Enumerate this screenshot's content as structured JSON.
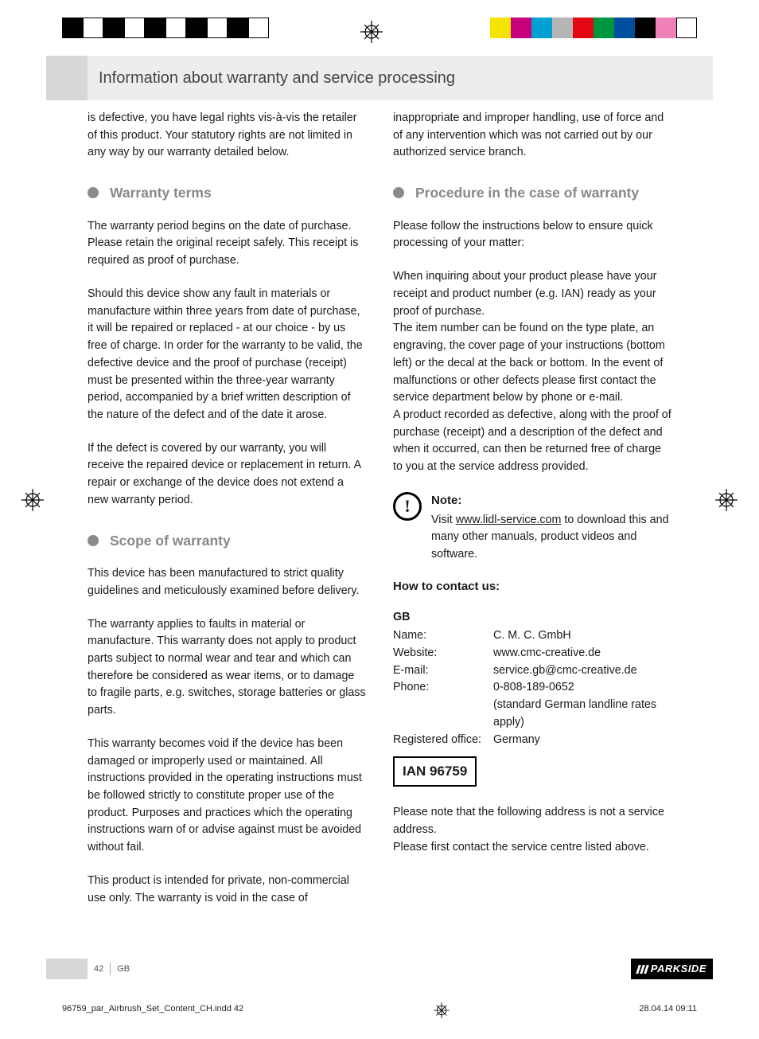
{
  "colorBarsLeft": [
    "#000000",
    "#ffffff",
    "#000000",
    "#ffffff",
    "#000000",
    "#ffffff",
    "#000000",
    "#ffffff",
    "#000000",
    "#ffffff"
  ],
  "colorBarsRight": [
    "#f4e400",
    "#c8007b",
    "#00a0d2",
    "#b5b5b5",
    "#e30613",
    "#009640",
    "#004f9e",
    "#000000",
    "#f080b8",
    "#ffffff"
  ],
  "header": {
    "title": "Information about warranty and service processing"
  },
  "leftCol": {
    "intro": "is defective, you have legal rights vis-à-vis the retailer of this product. Your statutory rights are not limited in any way by our warranty detailed below.",
    "h1": "Warranty terms",
    "p1": "The warranty period begins on the date of purchase. Please retain the original receipt safely. This receipt is required as proof of purchase.",
    "p2": "Should this device show any fault in materials or manufacture within three years from date of purchase, it will be repaired or replaced - at our choice - by us free of charge. In order for the warranty to be valid, the defective device and the proof of purchase (receipt) must be presented within the three-year warranty period, accompanied by a brief written description of the nature of the defect and of the date it arose.",
    "p3": "If the defect is covered by our warranty, you will receive the repaired device or replacement in return. A repair or exchange of the device does not extend a new warranty period.",
    "h2": "Scope of warranty",
    "p4": "This device has been manufactured to strict quality guidelines and meticulously examined before delivery.",
    "p5": "The warranty applies to faults in material or manufacture. This warranty does not apply to product parts subject to normal wear and tear and which can therefore be considered as wear items, or to damage to fragile parts, e.g. switches, storage batteries or glass parts.",
    "p6": "This warranty becomes void if the device has been damaged or improperly used or maintained. All instructions provided in the operating instructions must be followed strictly to constitute proper use of the product. Purposes and practices which the operating instructions warn of or advise against must be avoided without fail.",
    "p7": "This product is intended for private, non-commercial use only. The warranty is void in the case of"
  },
  "rightCol": {
    "intro": "inappropriate and improper handling, use of force and of any intervention which was not carried out by our authorized service branch.",
    "h1": "Procedure in the case of warranty",
    "p1": "Please follow the instructions below to ensure quick processing of your matter:",
    "p2": "When inquiring about your product please have your receipt and product number (e.g. IAN) ready as your proof of purchase.",
    "p3": "The item number can be found on the type plate, an engraving, the cover page of your instructions (bottom left) or the decal at the back or bottom. In the event of malfunctions or other defects please first contact the service department below by phone or e-mail.",
    "p4": "A product recorded as defective, along with the proof of purchase (receipt) and a description of the defect and when it occurred, can then be returned free of charge to you at the service address provided.",
    "note": {
      "title": "Note:",
      "pre": "Visit ",
      "link": "www.lidl-service.com",
      "post": " to download this and many other manuals, product videos and software."
    },
    "howTo": "How to contact us:",
    "countryLabel": "GB",
    "contact": {
      "name_k": "Name:",
      "name_v": "C. M. C. GmbH",
      "web_k": "Website:",
      "web_v": "www.cmc-creative.de",
      "mail_k": "E-mail:",
      "mail_v": "service.gb@cmc-creative.de",
      "phone_k": "Phone:",
      "phone_v": "0-808-189-0652",
      "phone_note": "(standard German landline rates apply)",
      "reg_k": "Registered office:",
      "reg_v": "Germany"
    },
    "ian": "IAN 96759",
    "closing1": "Please note that the following address is not a service address.",
    "closing2": "Please first contact the service centre listed above."
  },
  "footer": {
    "pageNum": "42",
    "country": "GB",
    "brand": "PARKSIDE",
    "file": "96759_par_Airbrush_Set_Content_CH.indd   42",
    "date": "28.04.14   09:11"
  }
}
